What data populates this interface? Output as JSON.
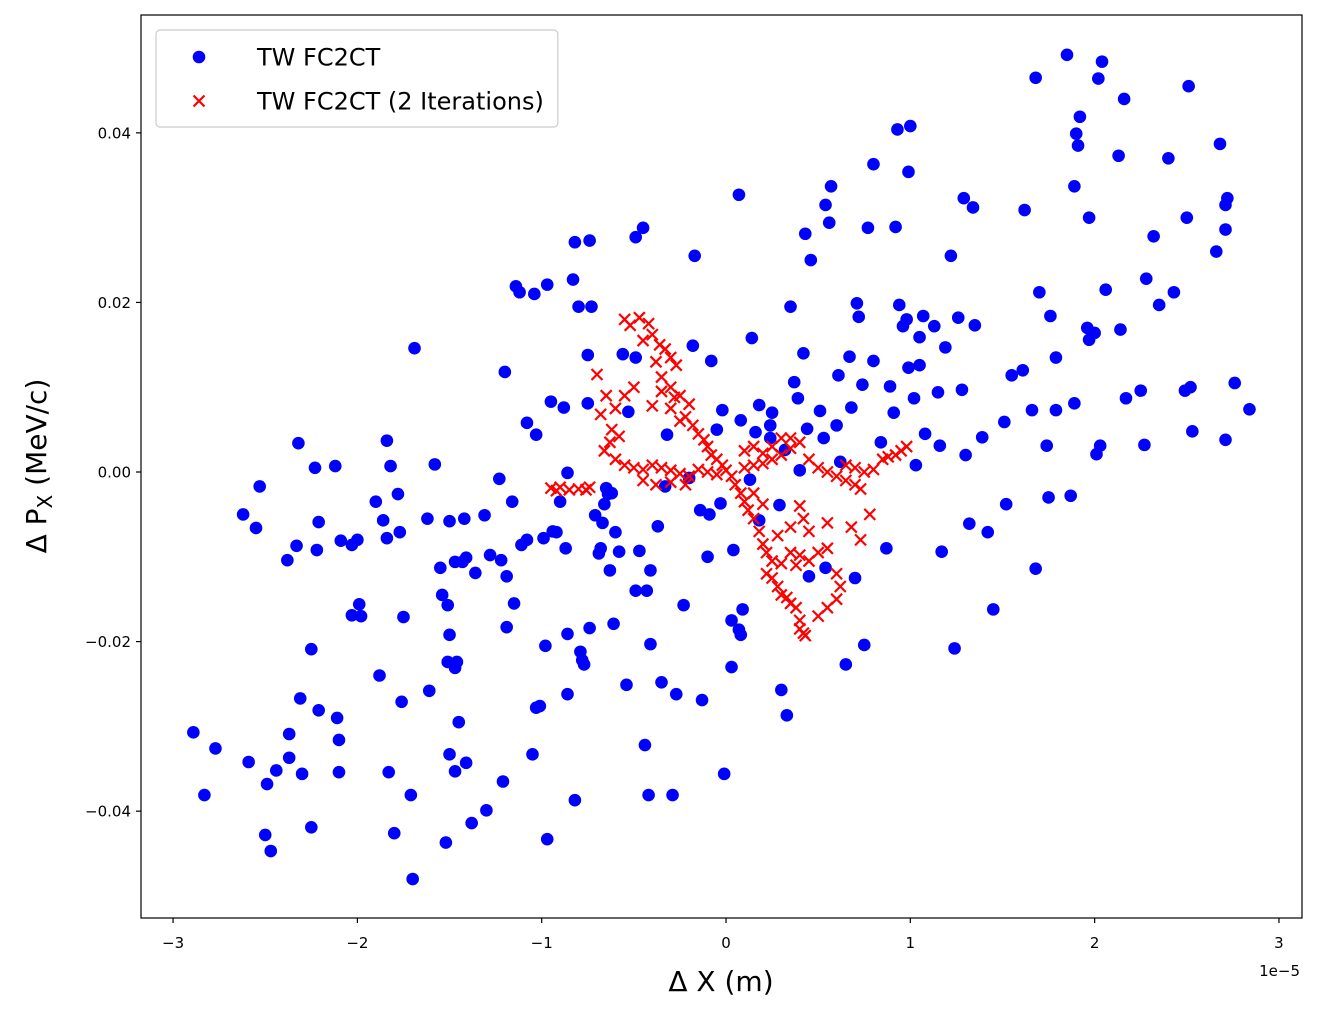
{
  "chart_data": {
    "type": "scatter",
    "xlabel": "Δ X (m)",
    "ylabel": "Δ P",
    "ylabel_subscript": "X",
    "ylabel_suffix": " (MeV/c)",
    "x_offset_label": "1e−5",
    "xlim": [
      -3.174e-05,
      3.125e-05
    ],
    "ylim": [
      -0.0526,
      0.0539
    ],
    "xticks": [
      {
        "value": -3e-05,
        "label": "−3"
      },
      {
        "value": -2e-05,
        "label": "−2"
      },
      {
        "value": -1e-05,
        "label": "−1"
      },
      0,
      {
        "value": 1e-05,
        "label": "1"
      },
      {
        "value": 2e-05,
        "label": "2"
      },
      {
        "value": 3e-05,
        "label": "3"
      }
    ],
    "yticks": [
      {
        "value": -0.04,
        "label": "−0.04"
      },
      {
        "value": -0.02,
        "label": "−0.02"
      },
      {
        "value": 0,
        "label": "0.00"
      },
      0.02,
      0.04
    ],
    "grid": false,
    "legend": "upper left",
    "series": [
      {
        "name": "TW FC2CT",
        "color": "#0000ff",
        "marker": "o",
        "x": [
          -2.89e-05,
          -2.83e-05,
          -2.77e-05,
          -2.62e-05,
          -2.59e-05,
          -2.55e-05,
          -2.53e-05,
          -2.5e-05,
          -2.49e-05,
          -2.47e-05,
          -2.44e-05,
          -2.38e-05,
          -2.37e-05,
          -2.37e-05,
          -2.33e-05,
          -2.32e-05,
          -2.31e-05,
          -2.3e-05,
          -2.25e-05,
          -2.25e-05,
          -2.23e-05,
          -2.22e-05,
          -2.21e-05,
          -2.21e-05,
          -2.12e-05,
          -2.11e-05,
          -2.1e-05,
          -2.1e-05,
          -2.09e-05,
          -2.03e-05,
          -2.03e-05,
          -2e-05,
          -1.99e-05,
          -1.98e-05,
          -1.9e-05,
          -1.88e-05,
          -1.86e-05,
          -1.84e-05,
          -1.84e-05,
          -1.83e-05,
          -1.82e-05,
          -1.8e-05,
          -1.78e-05,
          -1.77e-05,
          -1.76e-05,
          -1.75e-05,
          -1.71e-05,
          -1.7e-05,
          -1.69e-05,
          -1.62e-05,
          -1.61e-05,
          -1.58e-05,
          -1.55e-05,
          -1.54e-05,
          -1.52e-05,
          -1.51e-05,
          -1.51e-05,
          -1.5e-05,
          -1.5e-05,
          -1.5e-05,
          -1.47e-05,
          -1.47e-05,
          -1.47e-05,
          -1.46e-05,
          -1.45e-05,
          -1.43e-05,
          -1.42e-05,
          -1.41e-05,
          -1.41e-05,
          -1.38e-05,
          -1.36e-05,
          -1.31e-05,
          -1.3e-05,
          -1.28e-05,
          -1.23e-05,
          -1.22e-05,
          -1.21e-05,
          -1.2e-05,
          -1.19e-05,
          -1.19e-05,
          -1.16e-05,
          -1.15e-05,
          -1.14e-05,
          -1.12e-05,
          -1.11e-05,
          -1.08e-05,
          -1.08e-05,
          -1.05e-05,
          -1.04e-05,
          -1.03e-05,
          -1.03e-05,
          -1.01e-05,
          -9.9e-06,
          -9.8e-06,
          -9.7e-06,
          -9.7e-06,
          -9.5e-06,
          -9.4e-06,
          -9.2e-06,
          -9e-06,
          -8.8e-06,
          -8.7e-06,
          -8.6e-06,
          -8.6e-06,
          -8.6e-06,
          -8.3e-06,
          -8.2e-06,
          -8.2e-06,
          -8e-06,
          -7.9e-06,
          -7.8e-06,
          -7.7e-06,
          -7.5e-06,
          -7.5e-06,
          -7.4e-06,
          -7.4e-06,
          -7.3e-06,
          -7.1e-06,
          -6.9e-06,
          -6.8e-06,
          -6.7e-06,
          -6.6e-06,
          -6.5e-06,
          -6.4e-06,
          -6.3e-06,
          -6.2e-06,
          -6.1e-06,
          -6e-06,
          -5.8e-06,
          -5.6e-06,
          -5.4e-06,
          -5.3e-06,
          -4.9e-06,
          -4.9e-06,
          -4.9e-06,
          -4.7e-06,
          -4.5e-06,
          -4.4e-06,
          -4.3e-06,
          -4.2e-06,
          -4.1e-06,
          -4.1e-06,
          -3.7e-06,
          -3.5e-06,
          -3.3e-06,
          -3.2e-06,
          -2.9e-06,
          -2.7e-06,
          -2.3e-06,
          -1.8e-06,
          -1.7e-06,
          -1.3e-06,
          -1e-06,
          -9e-07,
          -8e-07,
          -5e-07,
          -3e-07,
          -2e-07,
          -1e-07,
          3e-07,
          3e-07,
          4e-07,
          7e-07,
          7e-07,
          8e-07,
          9e-07,
          1.4e-06,
          1.6e-06,
          1.8e-06,
          2.4e-06,
          2.5e-06,
          2.9e-06,
          3e-06,
          3.3e-06,
          3.5e-06,
          3.7e-06,
          3.9e-06,
          4.2e-06,
          4.3e-06,
          4.4e-06,
          4.5e-06,
          4.6e-06,
          5.1e-06,
          5.3e-06,
          5.4e-06,
          5.4e-06,
          5.6e-06,
          5.7e-06,
          6e-06,
          6.1e-06,
          6.2e-06,
          6.5e-06,
          6.7e-06,
          6.8e-06,
          7e-06,
          7.1e-06,
          7.2e-06,
          7.4e-06,
          7.5e-06,
          7.7e-06,
          8e-06,
          8e-06,
          8.4e-06,
          8.7e-06,
          8.9e-06,
          9.1e-06,
          9.2e-06,
          9.3e-06,
          9.4e-06,
          9.6e-06,
          9.8e-06,
          9.9e-06,
          9.9e-06,
          1e-05,
          1.02e-05,
          1.03e-05,
          1.05e-05,
          1.05e-05,
          1.07e-05,
          1.08e-05,
          1.13e-05,
          1.15e-05,
          1.16e-05,
          1.17e-05,
          1.19e-05,
          1.22e-05,
          1.24e-05,
          1.26e-05,
          1.28e-05,
          1.29e-05,
          1.3e-05,
          1.32e-05,
          1.34e-05,
          1.35e-05,
          1.39e-05,
          1.42e-05,
          1.45e-05,
          1.51e-05,
          1.52e-05,
          1.55e-05,
          1.61e-05,
          1.62e-05,
          1.66e-05,
          1.68e-05,
          1.68e-05,
          1.7e-05,
          1.74e-05,
          1.75e-05,
          1.76e-05,
          1.79e-05,
          1.79e-05,
          1.85e-05,
          1.87e-05,
          1.89e-05,
          1.89e-05,
          1.9e-05,
          1.91e-05,
          1.92e-05,
          1.96e-05,
          1.97e-05,
          1.97e-05,
          2e-05,
          2.01e-05,
          2.02e-05,
          2.03e-05,
          2.04e-05,
          2.06e-05,
          2.13e-05,
          2.14e-05,
          2.16e-05,
          2.17e-05,
          2.25e-05,
          2.27e-05,
          2.28e-05,
          2.32e-05,
          2.35e-05,
          2.4e-05,
          2.43e-05,
          2.49e-05,
          2.5e-05,
          2.51e-05,
          2.52e-05,
          2.53e-05,
          2.66e-05,
          2.68e-05,
          2.71e-05,
          2.71e-05,
          2.71e-05,
          2.72e-05,
          2.76e-05,
          2.84e-05,
          -2e-06,
          -1.4e-06,
          8e-07,
          2.4e-06,
          3.2e-06,
          4e-06,
          1.3e-06,
          1.8e-06
        ],
        "values": [
          -0.0307,
          -0.0381,
          -0.0326,
          -0.005,
          -0.0342,
          -0.0066,
          -0.0017,
          -0.0428,
          -0.0368,
          -0.0447,
          -0.0352,
          -0.0104,
          -0.0309,
          -0.0337,
          -0.0087,
          0.0034,
          -0.0267,
          -0.0356,
          -0.0209,
          -0.0419,
          0.0005,
          -0.0092,
          -0.0281,
          -0.0059,
          0.0007,
          -0.029,
          -0.0316,
          -0.0354,
          -0.0081,
          -0.0086,
          -0.0169,
          -0.008,
          -0.0156,
          -0.017,
          -0.0035,
          -0.024,
          -0.0057,
          0.0037,
          -0.0078,
          -0.0354,
          0.0007,
          -0.0426,
          -0.0026,
          -0.0071,
          -0.0271,
          -0.0171,
          -0.0381,
          -0.048,
          0.0146,
          -0.0055,
          -0.0258,
          0.0009,
          -0.0113,
          -0.0145,
          -0.0437,
          -0.0224,
          -0.0157,
          -0.0192,
          -0.0333,
          -0.0058,
          -0.0231,
          -0.0106,
          -0.0353,
          -0.0224,
          -0.0295,
          -0.0106,
          -0.0055,
          -0.0343,
          -0.0101,
          -0.0414,
          -0.0119,
          -0.0051,
          -0.0399,
          -0.0098,
          -0.0008,
          -0.0104,
          -0.0365,
          0.0118,
          -0.0123,
          -0.0183,
          -0.0035,
          -0.0155,
          0.0219,
          0.0212,
          -0.0086,
          0.0058,
          -0.008,
          -0.0333,
          0.021,
          -0.0278,
          0.0044,
          -0.0276,
          -0.0078,
          -0.0205,
          0.0221,
          -0.0433,
          0.0083,
          -0.007,
          -0.0071,
          -0.0035,
          0.0076,
          -0.009,
          -0.0001,
          -0.0191,
          -0.0262,
          0.0227,
          0.0271,
          -0.0387,
          0.0195,
          -0.0212,
          -0.0222,
          -0.0227,
          0.0138,
          0.0081,
          0.0273,
          -0.0184,
          0.0195,
          -0.0051,
          -0.0096,
          -0.009,
          -0.006,
          -0.0038,
          -0.0019,
          -0.0026,
          -0.0116,
          -0.0025,
          -0.0179,
          -0.0071,
          -0.0094,
          0.0139,
          -0.0251,
          0.0071,
          0.0135,
          0.0277,
          -0.014,
          -0.0093,
          0.0288,
          -0.0322,
          -0.014,
          -0.0381,
          -0.0203,
          -0.0116,
          -0.0064,
          -0.0248,
          -0.0017,
          0.0044,
          -0.0381,
          -0.0262,
          -0.0157,
          0.0149,
          0.0255,
          -0.0269,
          -0.01,
          -0.005,
          0.0131,
          0.005,
          -0.0037,
          0.0073,
          -0.0356,
          -0.0175,
          -0.023,
          -0.0092,
          0.0327,
          -0.0186,
          -0.0192,
          -0.0162,
          0.0158,
          0.0047,
          0.0079,
          0.004,
          0.007,
          -0.0039,
          -0.0257,
          -0.0287,
          0.0195,
          0.0106,
          0.0087,
          0.014,
          0.0281,
          0.0051,
          -0.0123,
          0.025,
          0.0072,
          0.004,
          0.0315,
          -0.0113,
          0.0294,
          0.0337,
          0.0055,
          0.0114,
          0.0012,
          -0.0227,
          0.0136,
          0.0076,
          -0.0125,
          0.0199,
          0.0183,
          0.0103,
          -0.0204,
          0.0288,
          0.0363,
          0.0131,
          0.0035,
          -0.009,
          0.0101,
          0.007,
          0.0289,
          0.0404,
          0.0197,
          0.0172,
          0.018,
          0.0123,
          0.0354,
          0.0408,
          0.0087,
          0.0008,
          0.0159,
          0.0126,
          0.0184,
          0.0045,
          0.0172,
          0.0094,
          0.0031,
          -0.0094,
          0.0147,
          0.0255,
          -0.0208,
          0.0182,
          0.0097,
          0.0323,
          0.002,
          -0.0061,
          0.0312,
          0.0173,
          0.0041,
          -0.0071,
          -0.0162,
          0.0059,
          -0.0038,
          0.0114,
          0.012,
          0.0309,
          0.0073,
          -0.0114,
          0.0465,
          0.0212,
          0.0031,
          -0.003,
          0.0184,
          0.0073,
          0.0135,
          0.0492,
          -0.0028,
          0.0337,
          0.0081,
          0.0399,
          0.0385,
          0.0419,
          0.017,
          0.03,
          0.0156,
          0.0164,
          0.0021,
          0.0464,
          0.0031,
          0.0484,
          0.0215,
          0.0373,
          0.0168,
          0.044,
          0.0087,
          0.0096,
          0.0032,
          0.0228,
          0.0278,
          0.0197,
          0.037,
          0.0212,
          0.0096,
          0.03,
          0.0455,
          0.01,
          0.0048,
          0.026,
          0.0387,
          0.0286,
          0.0038,
          0.0315,
          0.0323,
          0.0105,
          0.0074,
          -0.0007,
          -0.0045,
          0.0061,
          0.0055,
          0.0026,
          0.0002,
          -0.0009,
          -0.0057
        ]
      },
      {
        "name": "TW FC2CT (2 Iterations)",
        "color": "#ff0000",
        "marker": "x",
        "x": [
          -9.5e-06,
          -9.2e-06,
          -9e-06,
          -8.5e-06,
          -8e-06,
          -7.6e-06,
          -7.4e-06,
          -5.5e-06,
          -5.2e-06,
          -4.7e-06,
          -4.2e-06,
          -4e-06,
          -3.6e-06,
          -3.3e-06,
          -3e-06,
          -2.7e-06,
          -4.5e-06,
          -3.8e-06,
          -3.5e-06,
          -3e-06,
          -2.5e-06,
          -2e-06,
          -2.2e-06,
          -1.8e-06,
          -1.5e-06,
          -1.2e-06,
          -1e-06,
          -8e-07,
          -5e-07,
          -2e-07,
          -3e-06,
          -2.8e-06,
          -2.5e-06,
          -3.5e-06,
          -4e-06,
          -5e-06,
          -5.5e-06,
          -6e-06,
          -6.5e-06,
          -7e-06,
          -6.8e-06,
          -6.2e-06,
          -5.8e-06,
          -6.3e-06,
          -6.6e-06,
          -6e-06,
          -5.5e-06,
          -5e-06,
          -4.5e-06,
          -4e-06,
          -3.5e-06,
          -3e-06,
          -2.5e-06,
          -2e-06,
          -1.5e-06,
          -1e-06,
          -5e-07,
          -4.5e-06,
          -3.8e-06,
          -3e-06,
          -2.2e-06,
          0.0,
          3e-07,
          5e-07,
          8e-07,
          1e-06,
          1.2e-06,
          1.5e-06,
          1.8e-06,
          2e-06,
          2.2e-06,
          2.5e-06,
          2.2e-06,
          2.5e-06,
          2.8e-06,
          3e-06,
          3.5e-06,
          3.8e-06,
          4e-06,
          4.2e-06,
          4e-06,
          4.3e-06,
          3.3e-06,
          3e-06,
          3.5e-06,
          4e-06,
          4.5e-06,
          5e-06,
          5.5e-06,
          6e-06,
          6.2e-06,
          6e-06,
          5.5e-06,
          5e-06,
          3.8e-06,
          2.8e-06,
          3.5e-06,
          4.2e-06,
          4e-06,
          2e-06,
          1.5e-06,
          1e-06,
          1.5e-06,
          2e-06,
          2.5e-06,
          3e-06,
          3.5e-06,
          4e-06,
          4.5e-06,
          5e-06,
          5.5e-06,
          6e-06,
          6.5e-06,
          7e-06,
          6.5e-06,
          7e-06,
          7.5e-06,
          8e-06,
          8.5e-06,
          8.8e-06,
          9.2e-06,
          9.5e-06,
          9.8e-06,
          7.3e-06,
          6.8e-06,
          7.3e-06,
          7.8e-06,
          5.5e-06,
          4.5e-06,
          1e-06,
          1.5e-06,
          2e-06,
          2.5e-06,
          3e-06,
          3.5e-06
        ],
        "values": [
          -0.0019,
          -0.0022,
          -0.0018,
          -0.0021,
          -0.002,
          -0.0021,
          -0.0018,
          0.018,
          0.0173,
          0.0182,
          0.0175,
          0.0162,
          0.015,
          0.0145,
          0.0135,
          0.0126,
          0.0155,
          0.013,
          0.0112,
          0.01,
          0.009,
          0.008,
          0.0065,
          0.0055,
          0.0045,
          0.0038,
          0.003,
          0.002,
          0.0015,
          0.0008,
          0.0075,
          0.0088,
          0.006,
          0.0095,
          0.0078,
          0.01,
          0.009,
          0.0075,
          0.009,
          0.0115,
          0.0068,
          0.005,
          0.0042,
          0.0035,
          0.0025,
          0.0015,
          0.0008,
          0.0005,
          0.0003,
          0.0008,
          0.0005,
          0.0002,
          -0.0002,
          -0.0005,
          0.0003,
          0.0,
          -0.0003,
          -0.001,
          -0.0015,
          -0.0012,
          -0.0015,
          0.0002,
          -0.0005,
          -0.0015,
          -0.0025,
          -0.0035,
          -0.0045,
          -0.0055,
          -0.007,
          -0.0085,
          -0.0095,
          -0.0105,
          -0.012,
          -0.0125,
          -0.0135,
          -0.0145,
          -0.0155,
          -0.016,
          -0.0175,
          -0.019,
          -0.0185,
          -0.0193,
          -0.0148,
          -0.0108,
          -0.0095,
          -0.0098,
          -0.0105,
          -0.0095,
          -0.009,
          -0.012,
          -0.0135,
          -0.015,
          -0.016,
          -0.017,
          -0.011,
          -0.0075,
          -0.0065,
          -0.0055,
          -0.004,
          -0.0038,
          -0.0025,
          0.0005,
          0.0008,
          0.001,
          0.0015,
          0.002,
          0.0028,
          0.0035,
          0.0015,
          0.0005,
          0.0,
          -0.0005,
          -0.001,
          -0.0015,
          0.0008,
          0.0005,
          0.0,
          0.0003,
          0.0015,
          0.0018,
          0.002,
          0.0025,
          0.003,
          -0.002,
          -0.0065,
          -0.008,
          -0.005,
          -0.006,
          -0.007,
          0.0025,
          0.003,
          0.0022,
          0.003,
          0.004,
          0.004
        ]
      }
    ]
  }
}
